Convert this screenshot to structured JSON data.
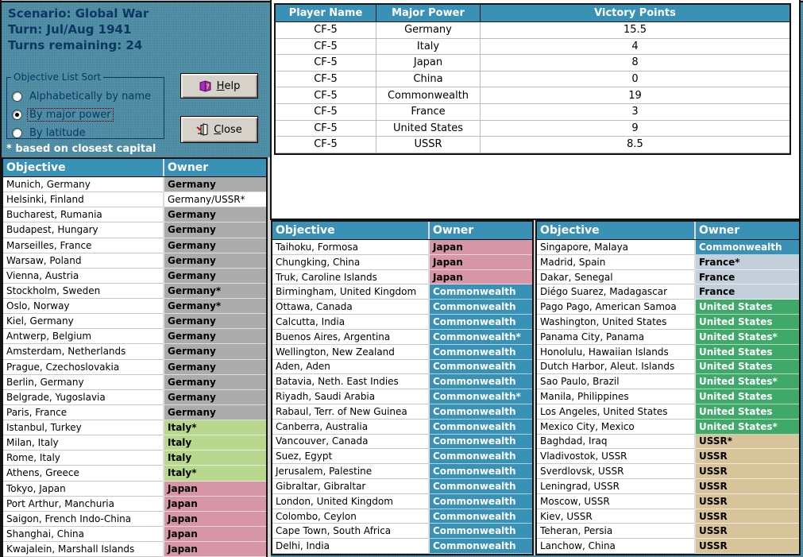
{
  "scenario": {
    "title": "Scenario: Global War",
    "turn": "Turn: Jul/Aug 1941",
    "remaining": "Turns remaining: 24"
  },
  "sort_box": {
    "label": "Objective List Sort",
    "options": [
      {
        "label": "Alphabetically by name",
        "selected": false
      },
      {
        "label": "By major power",
        "selected": true
      },
      {
        "label": "By latitude",
        "selected": false
      }
    ]
  },
  "footnote": "* based on closest capital",
  "buttons": {
    "help": "Help",
    "close": "Close"
  },
  "players_table": {
    "headers": [
      "Player Name",
      "Major Power",
      "Victory Points"
    ],
    "rows": [
      [
        "CF-5",
        "Germany",
        "15.5"
      ],
      [
        "CF-5",
        "Italy",
        "4"
      ],
      [
        "CF-5",
        "Japan",
        "8"
      ],
      [
        "CF-5",
        "China",
        "0"
      ],
      [
        "CF-5",
        "Commonwealth",
        "19"
      ],
      [
        "CF-5",
        "France",
        "3"
      ],
      [
        "CF-5",
        "United States",
        "9"
      ],
      [
        "CF-5",
        "USSR",
        "8.5"
      ]
    ]
  },
  "objective_tables": [
    {
      "headers": [
        "Objective",
        "Owner"
      ],
      "rows": [
        [
          "Munich, Germany",
          "Germany",
          "germany"
        ],
        [
          "Helsinki, Finland",
          "Germany/USSR*",
          "mixed"
        ],
        [
          "Bucharest, Rumania",
          "Germany",
          "germany"
        ],
        [
          "Budapest, Hungary",
          "Germany",
          "germany"
        ],
        [
          "Marseilles, France",
          "Germany",
          "germany"
        ],
        [
          "Warsaw, Poland",
          "Germany",
          "germany"
        ],
        [
          "Vienna, Austria",
          "Germany",
          "germany"
        ],
        [
          "Stockholm, Sweden",
          "Germany*",
          "germany"
        ],
        [
          "Oslo, Norway",
          "Germany*",
          "germany"
        ],
        [
          "Kiel, Germany",
          "Germany",
          "germany"
        ],
        [
          "Antwerp, Belgium",
          "Germany",
          "germany"
        ],
        [
          "Amsterdam, Netherlands",
          "Germany",
          "germany"
        ],
        [
          "Prague, Czechoslovakia",
          "Germany",
          "germany"
        ],
        [
          "Berlin, Germany",
          "Germany",
          "germany"
        ],
        [
          "Belgrade, Yugoslavia",
          "Germany",
          "germany"
        ],
        [
          "Paris, France",
          "Germany",
          "germany"
        ],
        [
          "Istanbul, Turkey",
          "Italy*",
          "italy"
        ],
        [
          "Milan, Italy",
          "Italy",
          "italy"
        ],
        [
          "Rome, Italy",
          "Italy",
          "italy"
        ],
        [
          "Athens, Greece",
          "Italy*",
          "italy"
        ],
        [
          "Tokyo, Japan",
          "Japan",
          "japan"
        ],
        [
          "Port Arthur, Manchuria",
          "Japan",
          "japan"
        ],
        [
          "Saigon, French Indo-China",
          "Japan",
          "japan"
        ],
        [
          "Shanghai, China",
          "Japan",
          "japan"
        ],
        [
          "Kwajalein, Marshall Islands",
          "Japan",
          "japan"
        ]
      ]
    },
    {
      "headers": [
        "Objective",
        "Owner"
      ],
      "rows": [
        [
          "Taihoku, Formosa",
          "Japan",
          "japan"
        ],
        [
          "Chungking, China",
          "Japan",
          "japan"
        ],
        [
          "Truk, Caroline Islands",
          "Japan",
          "japan"
        ],
        [
          "Birmingham, United Kingdom",
          "Commonwealth",
          "commonwealth"
        ],
        [
          "Ottawa, Canada",
          "Commonwealth",
          "commonwealth"
        ],
        [
          "Calcutta, India",
          "Commonwealth",
          "commonwealth"
        ],
        [
          "Buenos Aires, Argentina",
          "Commonwealth*",
          "commonwealth"
        ],
        [
          "Wellington, New Zealand",
          "Commonwealth",
          "commonwealth"
        ],
        [
          "Aden, Aden",
          "Commonwealth",
          "commonwealth"
        ],
        [
          "Batavia, Neth. East Indies",
          "Commonwealth",
          "commonwealth"
        ],
        [
          "Riyadh, Saudi Arabia",
          "Commonwealth*",
          "commonwealth"
        ],
        [
          "Rabaul, Terr. of New Guinea",
          "Commonwealth",
          "commonwealth"
        ],
        [
          "Canberra, Australia",
          "Commonwealth",
          "commonwealth"
        ],
        [
          "Vancouver, Canada",
          "Commonwealth",
          "commonwealth"
        ],
        [
          "Suez, Egypt",
          "Commonwealth",
          "commonwealth"
        ],
        [
          "Jerusalem, Palestine",
          "Commonwealth",
          "commonwealth"
        ],
        [
          "Gibraltar, Gibraltar",
          "Commonwealth",
          "commonwealth"
        ],
        [
          "London, United Kingdom",
          "Commonwealth",
          "commonwealth"
        ],
        [
          "Colombo, Ceylon",
          "Commonwealth",
          "commonwealth"
        ],
        [
          "Cape Town, South Africa",
          "Commonwealth",
          "commonwealth"
        ],
        [
          "Delhi, India",
          "Commonwealth",
          "commonwealth"
        ]
      ]
    },
    {
      "headers": [
        "Objective",
        "Owner"
      ],
      "rows": [
        [
          "Singapore, Malaya",
          "Commonwealth",
          "commonwealth"
        ],
        [
          "Madrid, Spain",
          "France*",
          "france"
        ],
        [
          "Dakar, Senegal",
          "France",
          "france"
        ],
        [
          "Diégo Suarez, Madagascar",
          "France",
          "france"
        ],
        [
          "Pago Pago, American Samoa",
          "United States",
          "united_states"
        ],
        [
          "Washington, United States",
          "United States",
          "united_states"
        ],
        [
          "Panama City, Panama",
          "United States*",
          "united_states"
        ],
        [
          "Honolulu, Hawaiian Islands",
          "United States",
          "united_states"
        ],
        [
          "Dutch Harbor, Aleut. Islands",
          "United States",
          "united_states"
        ],
        [
          "Sao Paulo, Brazil",
          "United States*",
          "united_states"
        ],
        [
          "Manila, Philippines",
          "United States",
          "united_states"
        ],
        [
          "Los Angeles, United States",
          "United States",
          "united_states"
        ],
        [
          "Mexico City, Mexico",
          "United States*",
          "united_states"
        ],
        [
          "Baghdad, Iraq",
          "USSR*",
          "ussr"
        ],
        [
          "Vladivostok, USSR",
          "USSR",
          "ussr"
        ],
        [
          "Sverdlovsk, USSR",
          "USSR",
          "ussr"
        ],
        [
          "Leningrad, USSR",
          "USSR",
          "ussr"
        ],
        [
          "Moscow, USSR",
          "USSR",
          "ussr"
        ],
        [
          "Kiev, USSR",
          "USSR",
          "ussr"
        ],
        [
          "Teheran, Persia",
          "USSR",
          "ussr"
        ],
        [
          "Lanchow, China",
          "USSR",
          "ussr"
        ]
      ]
    }
  ],
  "owner_styles": {
    "germany": {
      "bg": "#ACACAC",
      "fg": "#000000",
      "bold": true
    },
    "mixed": {
      "bg": "#FFFFFF",
      "fg": "#000000",
      "bold": false,
      "sep": "#C8C8C8"
    },
    "italy": {
      "bg": "#B8D88E",
      "fg": "#000000",
      "bold": true
    },
    "japan": {
      "bg": "#D795A8",
      "fg": "#000000",
      "bold": true
    },
    "commonwealth": {
      "bg": "#3A91B6",
      "fg": "#FFFFFF",
      "bold": true
    },
    "france": {
      "bg": "#C3CFDA",
      "fg": "#000000",
      "bold": true
    },
    "united_states": {
      "bg": "#3EA969",
      "fg": "#FFFFFF",
      "bold": true
    },
    "ussr": {
      "bg": "#D8C49B",
      "fg": "#000000",
      "bold": true
    }
  },
  "colors": {
    "background": "#4F8DA5",
    "table_header": "#3A91B6",
    "navy_text": "#0B3860"
  }
}
